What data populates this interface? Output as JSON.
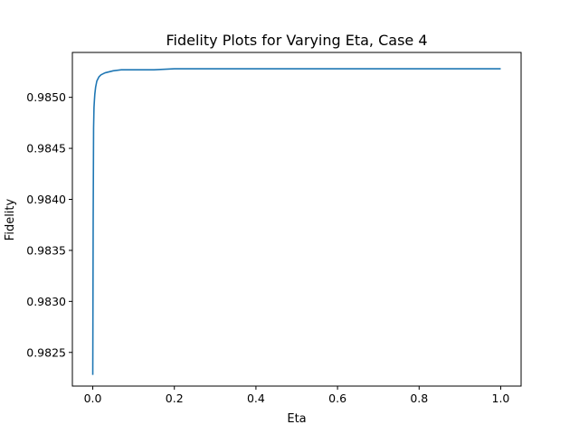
{
  "chart_data": {
    "type": "line",
    "title": "Fidelity Plots for Varying Eta, Case 4",
    "xlabel": "Eta",
    "ylabel": "Fidelity",
    "xlim": [
      -0.05,
      1.05
    ],
    "ylim": [
      0.98217,
      0.98544
    ],
    "grid": false,
    "legend": "none",
    "xticks": [
      0.0,
      0.2,
      0.4,
      0.6,
      0.8,
      1.0
    ],
    "xtick_labels": [
      "0.0",
      "0.2",
      "0.4",
      "0.6",
      "0.8",
      "1.0"
    ],
    "yticks": [
      0.9825,
      0.983,
      0.9835,
      0.984,
      0.9845,
      0.985
    ],
    "ytick_labels": [
      "0.9825",
      "0.9830",
      "0.9835",
      "0.9840",
      "0.9845",
      "0.9850"
    ],
    "series": [
      {
        "color": "#1f77b4",
        "x": [
          0.0,
          0.001,
          0.002,
          0.003,
          0.004,
          0.005,
          0.007,
          0.01,
          0.015,
          0.02,
          0.03,
          0.04,
          0.05,
          0.07,
          0.1,
          0.15,
          0.2,
          0.3,
          0.4,
          0.5,
          0.6,
          0.7,
          0.8,
          0.9,
          1.0
        ],
        "y": [
          0.98228,
          0.9838,
          0.9847,
          0.9849,
          0.98497,
          0.98503,
          0.9851,
          0.98516,
          0.9852,
          0.98522,
          0.98524,
          0.98525,
          0.98526,
          0.98527,
          0.98527,
          0.98527,
          0.98528,
          0.98528,
          0.98528,
          0.98528,
          0.98528,
          0.98528,
          0.98528,
          0.98528,
          0.98528
        ]
      }
    ]
  }
}
